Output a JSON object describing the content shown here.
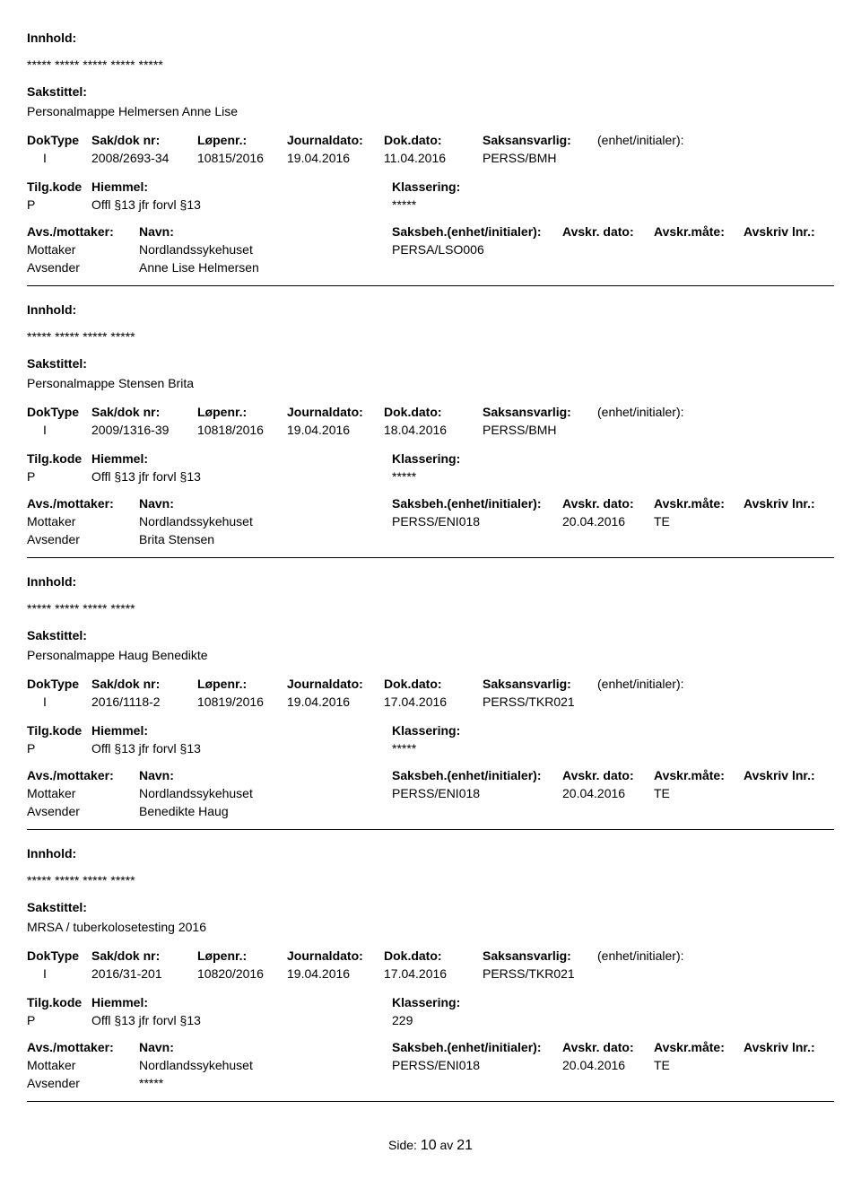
{
  "labels": {
    "innhold": "Innhold:",
    "sakstittel": "Sakstittel:",
    "doktype": "DokType",
    "sakdok": "Sak/dok nr:",
    "lopenr": "Løpenr.:",
    "journaldato": "Journaldato:",
    "dokdato": "Dok.dato:",
    "saksansvarlig": "Saksansvarlig:",
    "enhet": "(enhet/initialer):",
    "tilgkode": "Tilg.kode",
    "hjemmel": "Hiemmel:",
    "klassering": "Klassering:",
    "avsmottaker": "Avs./mottaker:",
    "navn": "Navn:",
    "saksbeh": "Saksbeh.(enhet/initialer):",
    "avskrdato": "Avskr. dato:",
    "avskrmate": "Avskr.måte:",
    "avskrivlnr": "Avskriv lnr.:",
    "side": "Side:",
    "av": "av"
  },
  "footer": {
    "page": "10",
    "total": "21"
  },
  "entries": [
    {
      "innhold": "***** ***** ***** ***** *****",
      "sakstittel": "Personalmappe Helmersen Anne Lise",
      "doktype": "I",
      "sakdok": "2008/2693-34",
      "lopenr": "10815/2016",
      "journaldato": "19.04.2016",
      "dokdato": "11.04.2016",
      "saksansvarlig": "PERSS/BMH",
      "enhet": "",
      "tilgkode": "P",
      "hjemmel": "Offl §13 jfr forvl §13",
      "klassering": "*****",
      "parties": [
        {
          "role": "Mottaker",
          "navn": "Nordlandssykehuset",
          "saksbeh": "PERSA/LSO006",
          "avskrdato": "",
          "avskrmate": "",
          "avskrlnr": ""
        },
        {
          "role": "Avsender",
          "navn": "Anne Lise Helmersen",
          "saksbeh": "",
          "avskrdato": "",
          "avskrmate": "",
          "avskrlnr": ""
        }
      ]
    },
    {
      "innhold": "***** ***** ***** *****",
      "sakstittel": "Personalmappe Stensen Brita",
      "doktype": "I",
      "sakdok": "2009/1316-39",
      "lopenr": "10818/2016",
      "journaldato": "19.04.2016",
      "dokdato": "18.04.2016",
      "saksansvarlig": "PERSS/BMH",
      "enhet": "",
      "tilgkode": "P",
      "hjemmel": "Offl §13 jfr forvl §13",
      "klassering": "*****",
      "parties": [
        {
          "role": "Mottaker",
          "navn": "Nordlandssykehuset",
          "saksbeh": "PERSS/ENI018",
          "avskrdato": "20.04.2016",
          "avskrmate": "TE",
          "avskrlnr": ""
        },
        {
          "role": "Avsender",
          "navn": "Brita Stensen",
          "saksbeh": "",
          "avskrdato": "",
          "avskrmate": "",
          "avskrlnr": ""
        }
      ]
    },
    {
      "innhold": "***** ***** ***** *****",
      "sakstittel": "Personalmappe Haug Benedikte",
      "doktype": "I",
      "sakdok": "2016/1118-2",
      "lopenr": "10819/2016",
      "journaldato": "19.04.2016",
      "dokdato": "17.04.2016",
      "saksansvarlig": "PERSS/TKR021",
      "enhet": "",
      "tilgkode": "P",
      "hjemmel": "Offl §13 jfr forvl §13",
      "klassering": "*****",
      "parties": [
        {
          "role": "Mottaker",
          "navn": "Nordlandssykehuset",
          "saksbeh": "PERSS/ENI018",
          "avskrdato": "20.04.2016",
          "avskrmate": "TE",
          "avskrlnr": ""
        },
        {
          "role": "Avsender",
          "navn": "Benedikte Haug",
          "saksbeh": "",
          "avskrdato": "",
          "avskrmate": "",
          "avskrlnr": ""
        }
      ]
    },
    {
      "innhold": "***** ***** ***** *****",
      "sakstittel": "MRSA / tuberkolosetesting 2016",
      "doktype": "I",
      "sakdok": "2016/31-201",
      "lopenr": "10820/2016",
      "journaldato": "19.04.2016",
      "dokdato": "17.04.2016",
      "saksansvarlig": "PERSS/TKR021",
      "enhet": "",
      "tilgkode": "P",
      "hjemmel": "Offl §13 jfr forvl §13",
      "klassering": "229",
      "parties": [
        {
          "role": "Mottaker",
          "navn": "Nordlandssykehuset",
          "saksbeh": "PERSS/ENI018",
          "avskrdato": "20.04.2016",
          "avskrmate": "TE",
          "avskrlnr": ""
        },
        {
          "role": "Avsender",
          "navn": "*****",
          "saksbeh": "",
          "avskrdato": "",
          "avskrmate": "",
          "avskrlnr": ""
        }
      ]
    }
  ]
}
